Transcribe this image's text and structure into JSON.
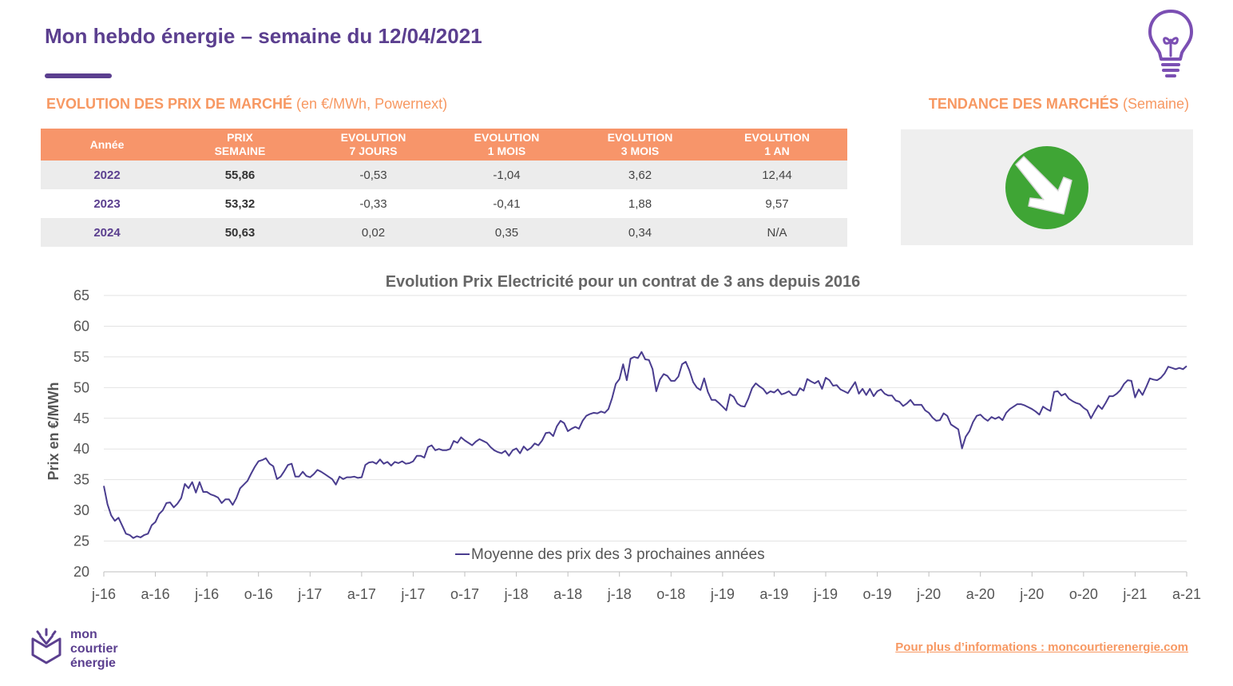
{
  "header": {
    "title": "Mon hebdo énergie – semaine du 12/04/2021",
    "icon": "lightbulb-icon"
  },
  "market_section": {
    "title_bold": "EVOLUTION DES PRIX DE MARCHÉ",
    "title_light": "(en €/MWh, Powernext)"
  },
  "trend_section": {
    "title_bold": "TENDANCE DES MARCHÉS",
    "title_light": "(Semaine)",
    "trend": "baisse",
    "icon": "arrow-down-right-icon",
    "color": "#3fa535"
  },
  "price_table": {
    "headers": [
      [
        "Année"
      ],
      [
        "PRIX",
        "SEMAINE"
      ],
      [
        "EVOLUTION",
        "7 JOURS"
      ],
      [
        "EVOLUTION",
        "1 MOIS"
      ],
      [
        "EVOLUTION",
        "3 MOIS"
      ],
      [
        "EVOLUTION",
        "1 AN"
      ]
    ],
    "rows": [
      [
        "2022",
        "55,86",
        "-0,53",
        "-1,04",
        "3,62",
        "12,44"
      ],
      [
        "2023",
        "53,32",
        "-0,33",
        "-0,41",
        "1,88",
        "9,57"
      ],
      [
        "2024",
        "50,63",
        "0,02",
        "0,35",
        "0,34",
        "N/A"
      ]
    ]
  },
  "chart_data": {
    "type": "line",
    "title": "Evolution Prix Electricité pour un contrat de 3 ans depuis 2016",
    "xlabel": "",
    "ylabel": "Prix en €/MWh",
    "ylim": [
      20,
      65
    ],
    "yticks": [
      20,
      25,
      30,
      35,
      40,
      45,
      50,
      55,
      60,
      65
    ],
    "x_tick_labels": [
      "j-16",
      "a-16",
      "j-16",
      "o-16",
      "j-17",
      "a-17",
      "j-17",
      "o-17",
      "j-18",
      "a-18",
      "j-18",
      "o-18",
      "j-19",
      "a-19",
      "j-19",
      "o-19",
      "j-20",
      "a-20",
      "j-20",
      "o-20",
      "j-21",
      "a-21"
    ],
    "grid": true,
    "legend": "bottom-center",
    "series": [
      {
        "name": "Moyenne des prix des 3 prochaines années",
        "color": "#4a3d8f",
        "values": [
          34.0,
          31.0,
          29.2,
          28.3,
          28.8,
          27.5,
          26.2,
          26.0,
          25.5,
          25.8,
          25.6,
          26.0,
          26.2,
          27.6,
          28.1,
          29.4,
          30.0,
          31.2,
          31.3,
          30.5,
          31.1,
          32.0,
          34.3,
          33.6,
          34.6,
          32.9,
          34.6,
          33.0,
          33.0,
          32.6,
          32.4,
          32.1,
          31.2,
          31.8,
          31.8,
          30.9,
          32.0,
          33.6,
          34.2,
          34.8,
          36.0,
          37.1,
          38.0,
          38.2,
          38.5,
          37.6,
          37.2,
          35.1,
          35.5,
          36.4,
          37.4,
          37.6,
          35.5,
          35.5,
          36.3,
          35.6,
          35.4,
          35.9,
          36.6,
          36.3,
          35.9,
          35.5,
          35.1,
          34.2,
          35.5,
          35.1,
          35.4,
          35.4,
          35.5,
          35.3,
          35.4,
          37.4,
          37.8,
          37.9,
          37.6,
          38.3,
          37.6,
          37.9,
          37.3,
          37.9,
          37.7,
          38.0,
          37.6,
          37.7,
          38.0,
          38.9,
          38.9,
          38.6,
          40.3,
          40.6,
          39.8,
          40.0,
          39.8,
          39.8,
          40.0,
          41.3,
          41.0,
          41.9,
          41.4,
          41.0,
          40.6,
          41.2,
          41.6,
          41.3,
          41.0,
          40.3,
          39.8,
          39.5,
          39.3,
          39.7,
          38.9,
          39.8,
          40.1,
          39.3,
          40.4,
          39.8,
          40.2,
          40.9,
          40.6,
          41.4,
          42.6,
          42.7,
          42.1,
          43.7,
          44.6,
          44.2,
          42.9,
          43.3,
          43.6,
          43.3,
          44.6,
          45.4,
          45.7,
          45.9,
          45.8,
          46.1,
          45.9,
          46.5,
          48.3,
          50.6,
          51.4,
          53.8,
          51.2,
          54.7,
          55.0,
          54.8,
          55.8,
          54.6,
          54.5,
          53.0,
          49.4,
          51.3,
          52.2,
          51.9,
          51.1,
          51.1,
          51.8,
          53.8,
          54.2,
          52.8,
          50.9,
          50.0,
          49.6,
          51.5,
          49.3,
          48.0,
          48.0,
          47.5,
          46.9,
          46.3,
          48.9,
          48.5,
          47.4,
          47.0,
          46.9,
          48.2,
          49.9,
          50.7,
          50.2,
          49.8,
          49.0,
          49.4,
          49.2,
          49.7,
          48.9,
          49.1,
          49.4,
          48.8,
          48.8,
          49.9,
          49.5,
          51.4,
          51.0,
          50.7,
          51.1,
          49.8,
          51.6,
          51.2,
          50.3,
          50.4,
          49.7,
          49.4,
          49.1,
          50.0,
          50.9,
          49.0,
          49.8,
          48.8,
          49.8,
          48.6,
          49.4,
          49.7,
          49.0,
          48.7,
          48.7,
          47.9,
          47.7,
          47.0,
          47.4,
          48.0,
          47.2,
          47.2,
          47.2,
          46.3,
          45.9,
          45.1,
          44.6,
          44.7,
          45.8,
          45.4,
          44.0,
          43.6,
          43.2,
          40.1,
          42.0,
          42.9,
          44.4,
          45.4,
          45.6,
          45.0,
          44.6,
          45.2,
          44.9,
          45.2,
          44.7,
          45.9,
          46.5,
          46.9,
          47.3,
          47.3,
          47.1,
          46.8,
          46.5,
          46.1,
          45.6,
          46.9,
          46.5,
          46.2,
          49.3,
          49.4,
          48.7,
          49.0,
          48.2,
          47.8,
          47.5,
          47.3,
          46.7,
          46.3,
          45.0,
          46.1,
          47.1,
          46.5,
          47.5,
          48.6,
          48.6,
          49.0,
          49.6,
          50.6,
          51.2,
          51.1,
          48.4,
          49.7,
          48.8,
          50.1,
          51.5,
          51.3,
          51.2,
          51.6,
          52.3,
          53.4,
          53.2,
          53.0,
          53.2,
          53.0,
          53.5
        ]
      }
    ]
  },
  "brand": {
    "line1": "mon",
    "line2": "courtier",
    "line3": "énergie",
    "logo": "mon-courtier-energie-logo"
  },
  "footer": {
    "link_text": "Pour plus d’informations : moncourtierenergie.com"
  }
}
